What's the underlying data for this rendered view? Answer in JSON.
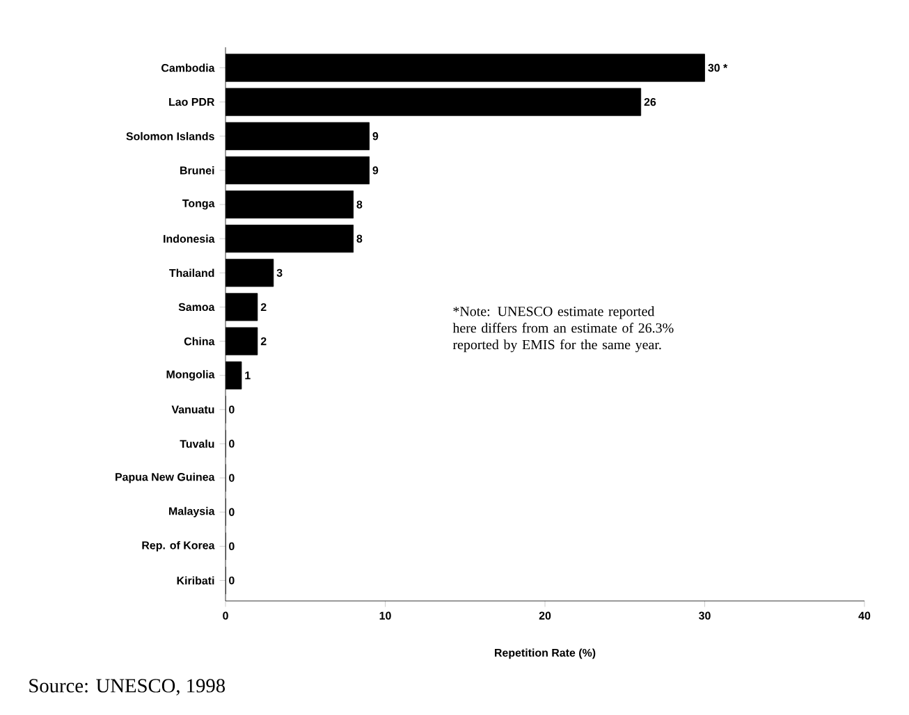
{
  "chart_data": {
    "type": "bar",
    "orientation": "horizontal",
    "xlabel": "Repetition Rate (%)",
    "categories": [
      "Cambodia",
      "Lao PDR",
      "Solomon Islands",
      "Brunei",
      "Tonga",
      "Indonesia",
      "Thailand",
      "Samoa",
      "China",
      "Mongolia",
      "Vanuatu",
      "Tuvalu",
      "Papua New Guinea",
      "Malaysia",
      "Rep. of Korea",
      "Kiribati"
    ],
    "values": [
      30,
      26,
      9,
      9,
      8,
      8,
      3,
      2,
      2,
      1,
      0,
      0,
      0,
      0,
      0,
      0
    ],
    "value_labels": [
      "30 *",
      "26",
      "9",
      "9",
      "8",
      "8",
      "3",
      "2",
      "2",
      "1",
      "0",
      "0",
      "0",
      "0",
      "0",
      "0"
    ],
    "color": "#000000",
    "xlim": [
      0,
      40
    ],
    "xticks": [
      0,
      10,
      20,
      30,
      40
    ],
    "annotations": [
      "*Note: UNESCO estimate reported here differs from an estimate of 26.3% reported by EMIS for the same year.",
      "Source: UNESCO, 1998"
    ]
  }
}
